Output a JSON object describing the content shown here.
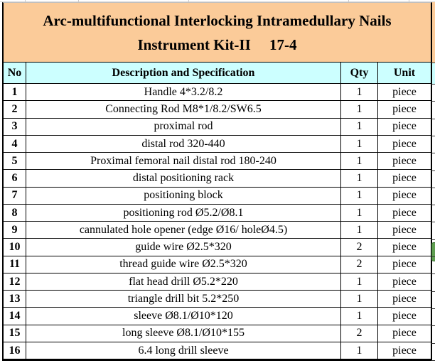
{
  "title": {
    "line1": "Arc-multifunctional Interlocking Intramedullary Nails",
    "line2": "Instrument Kit-II     17-4"
  },
  "colors": {
    "title_bg": "#FBCB99",
    "header_bg": "#CCFFFF",
    "border": "#000000",
    "selection_marker": "#5F9E50"
  },
  "table": {
    "headers": [
      "No",
      "Description and Specification",
      "Qty",
      "Unit"
    ],
    "rows": [
      {
        "no": "1",
        "description": "Handle 4*3.2/8.2",
        "qty": "1",
        "unit": "piece"
      },
      {
        "no": "2",
        "description": "Connecting Rod M8*1/8.2/SW6.5",
        "qty": "1",
        "unit": "piece"
      },
      {
        "no": "3",
        "description": "proximal rod",
        "qty": "1",
        "unit": "piece"
      },
      {
        "no": "4",
        "description": "distal rod 320-440",
        "qty": "1",
        "unit": "piece"
      },
      {
        "no": "5",
        "description": "Proximal femoral nail distal rod 180-240",
        "qty": "1",
        "unit": "piece"
      },
      {
        "no": "6",
        "description": "distal positioning rack",
        "qty": "1",
        "unit": "piece"
      },
      {
        "no": "7",
        "description": "positioning block",
        "qty": "1",
        "unit": "piece"
      },
      {
        "no": "8",
        "description": "positioning rod Ø5.2/Ø8.1",
        "qty": "1",
        "unit": "piece"
      },
      {
        "no": "9",
        "description": "cannulated hole opener (edge Ø16/ holeØ4.5)",
        "qty": "1",
        "unit": "piece"
      },
      {
        "no": "10",
        "description": "guide wire Ø2.5*320",
        "qty": "2",
        "unit": "piece"
      },
      {
        "no": "11",
        "description": "thread guide wire Ø2.5*320",
        "qty": "2",
        "unit": "piece"
      },
      {
        "no": "12",
        "description": "flat head drill Ø5.2*220",
        "qty": "1",
        "unit": "piece"
      },
      {
        "no": "13",
        "description": "triangle drill bit 5.2*250",
        "qty": "1",
        "unit": "piece"
      },
      {
        "no": "14",
        "description": "sleeve Ø8.1/Ø10*120",
        "qty": "1",
        "unit": "piece"
      },
      {
        "no": "15",
        "description": "long sleeve Ø8.1/Ø10*155",
        "qty": "2",
        "unit": "piece"
      },
      {
        "no": "16",
        "description": "6.4 long drill sleeve",
        "qty": "1",
        "unit": "piece"
      }
    ]
  }
}
